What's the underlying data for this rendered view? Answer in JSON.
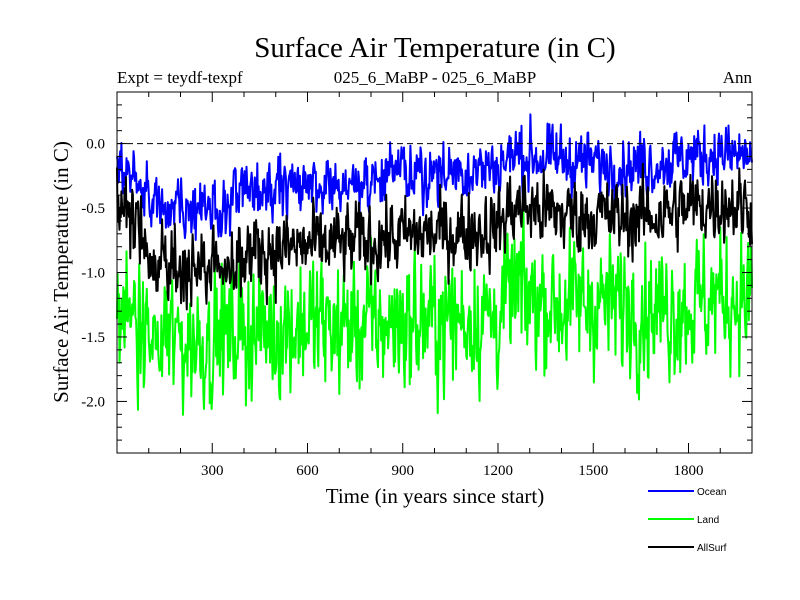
{
  "chart_data": {
    "type": "line",
    "title": "Surface Air Temperature (in C)",
    "expt_label": "Expt = teydf-texpf",
    "subtitle": "025_6_MaBP - 025_6_MaBP",
    "season": "Ann",
    "xlabel": "Time (in years since start)",
    "ylabel": "Surface Air Temperature (in C)",
    "xlim": [
      0,
      2000
    ],
    "ylim": [
      -2.4,
      0.4
    ],
    "xticks": [
      300,
      600,
      900,
      1200,
      1500,
      1800
    ],
    "xtick_labels": [
      "300",
      "600",
      "900",
      "1200",
      "1500",
      "1800"
    ],
    "yticks": [
      0.0,
      -0.5,
      -1.0,
      -1.5,
      -2.0
    ],
    "ytick_labels": [
      "0.0",
      "-0.5",
      "-1.0",
      "-1.5",
      "-2.0"
    ],
    "reference_line": 0.0,
    "legend_position": "bottom-right, below plot",
    "series": [
      {
        "name": "Ocean",
        "color": "#0000ff",
        "x": [
          0,
          100,
          200,
          300,
          400,
          500,
          600,
          700,
          800,
          900,
          1000,
          1100,
          1200,
          1250,
          1300,
          1400,
          1500,
          1600,
          1700,
          1800,
          1900,
          2000
        ],
        "y": [
          -0.1,
          -0.45,
          -0.55,
          -0.5,
          -0.4,
          -0.38,
          -0.35,
          -0.3,
          -0.28,
          -0.25,
          -0.22,
          -0.2,
          -0.18,
          -0.08,
          -0.1,
          -0.12,
          -0.15,
          -0.18,
          -0.15,
          -0.1,
          -0.08,
          -0.1
        ]
      },
      {
        "name": "Land",
        "color": "#00ff00",
        "x": [
          0,
          100,
          200,
          300,
          400,
          500,
          600,
          700,
          800,
          900,
          1000,
          1100,
          1200,
          1250,
          1300,
          1400,
          1500,
          1600,
          1700,
          1800,
          1900,
          2000
        ],
        "y": [
          -1.2,
          -1.45,
          -1.55,
          -1.5,
          -1.45,
          -1.45,
          -1.4,
          -1.42,
          -1.4,
          -1.38,
          -1.38,
          -1.35,
          -1.35,
          -1.15,
          -1.2,
          -1.25,
          -1.22,
          -1.25,
          -1.28,
          -1.25,
          -1.2,
          -1.2
        ]
      },
      {
        "name": "AllSurf",
        "color": "#000000",
        "x": [
          0,
          100,
          200,
          300,
          400,
          500,
          600,
          700,
          800,
          900,
          1000,
          1100,
          1200,
          1250,
          1300,
          1400,
          1500,
          1600,
          1700,
          1800,
          1900,
          2000
        ],
        "y": [
          -0.4,
          -0.85,
          -1.0,
          -0.92,
          -0.85,
          -0.82,
          -0.8,
          -0.78,
          -0.75,
          -0.72,
          -0.7,
          -0.68,
          -0.65,
          -0.48,
          -0.5,
          -0.55,
          -0.55,
          -0.58,
          -0.55,
          -0.5,
          -0.45,
          -0.5
        ]
      }
    ]
  }
}
